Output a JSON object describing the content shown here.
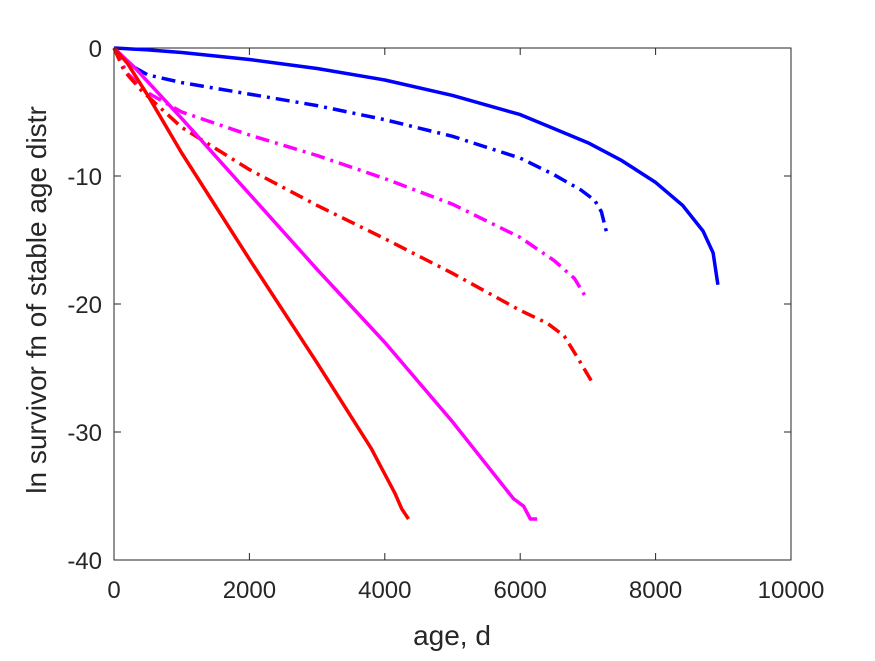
{
  "chart_data": {
    "type": "line",
    "title": "",
    "xlabel": "age, d",
    "ylabel": "ln survivor fn of stable age distr",
    "xlim": [
      0,
      10000
    ],
    "ylim": [
      -40,
      0
    ],
    "xticks": [
      0,
      2000,
      4000,
      6000,
      8000,
      10000
    ],
    "yticks": [
      0,
      -10,
      -20,
      -30,
      -40
    ],
    "xtick_labels": [
      "0",
      "2000",
      "4000",
      "6000",
      "8000",
      "10000"
    ],
    "ytick_labels": [
      "0",
      "-10",
      "-20",
      "-30",
      "-40"
    ],
    "grid": false,
    "legend": "none",
    "series": [
      {
        "color": "#0000ff",
        "style": "solid",
        "x": [
          0,
          500,
          1000,
          2000,
          3000,
          4000,
          5000,
          6000,
          7000,
          7500,
          8000,
          8400,
          8700,
          8850,
          8920
        ],
        "y": [
          0,
          -0.15,
          -0.35,
          -0.9,
          -1.6,
          -2.5,
          -3.7,
          -5.2,
          -7.4,
          -8.8,
          -10.5,
          -12.3,
          -14.3,
          -16.0,
          -18.5
        ]
      },
      {
        "color": "#0000ff",
        "style": "dashdot",
        "x": [
          0,
          200,
          500,
          1000,
          2000,
          3000,
          4000,
          5000,
          6000,
          6500,
          6900,
          7100,
          7200,
          7280
        ],
        "y": [
          0,
          -1.2,
          -2.1,
          -2.7,
          -3.6,
          -4.5,
          -5.6,
          -6.9,
          -8.6,
          -9.9,
          -11.1,
          -11.9,
          -12.8,
          -14.5
        ]
      },
      {
        "color": "#ff00ff",
        "style": "dashdot",
        "x": [
          0,
          200,
          500,
          1000,
          2000,
          3000,
          4000,
          5000,
          6000,
          6500,
          6800,
          6950
        ],
        "y": [
          0,
          -2.0,
          -3.5,
          -5.0,
          -6.8,
          -8.4,
          -10.2,
          -12.2,
          -14.8,
          -16.6,
          -18.0,
          -19.3
        ]
      },
      {
        "color": "#ff0000",
        "style": "dashdot",
        "x": [
          0,
          150,
          400,
          1000,
          2000,
          3000,
          4000,
          5000,
          6000,
          6400,
          6650,
          6850,
          7050
        ],
        "y": [
          0,
          -1.8,
          -3.3,
          -6.2,
          -9.5,
          -12.3,
          -14.9,
          -17.6,
          -20.5,
          -21.5,
          -22.5,
          -24.2,
          -26.0
        ]
      },
      {
        "color": "#ff00ff",
        "style": "solid",
        "x": [
          0,
          300,
          1000,
          2000,
          3000,
          4000,
          5000,
          5900,
          6050,
          6150,
          6250
        ],
        "y": [
          0,
          -1.5,
          -5.5,
          -11.4,
          -17.3,
          -23.0,
          -29.2,
          -35.2,
          -35.8,
          -36.8,
          -36.8
        ]
      },
      {
        "color": "#ff0000",
        "style": "solid",
        "x": [
          0,
          200,
          500,
          1000,
          2000,
          3000,
          3800,
          4150,
          4250,
          4350
        ],
        "y": [
          0,
          -1.2,
          -3.7,
          -8.2,
          -16.5,
          -24.6,
          -31.3,
          -34.8,
          -36.0,
          -36.8
        ]
      }
    ]
  }
}
